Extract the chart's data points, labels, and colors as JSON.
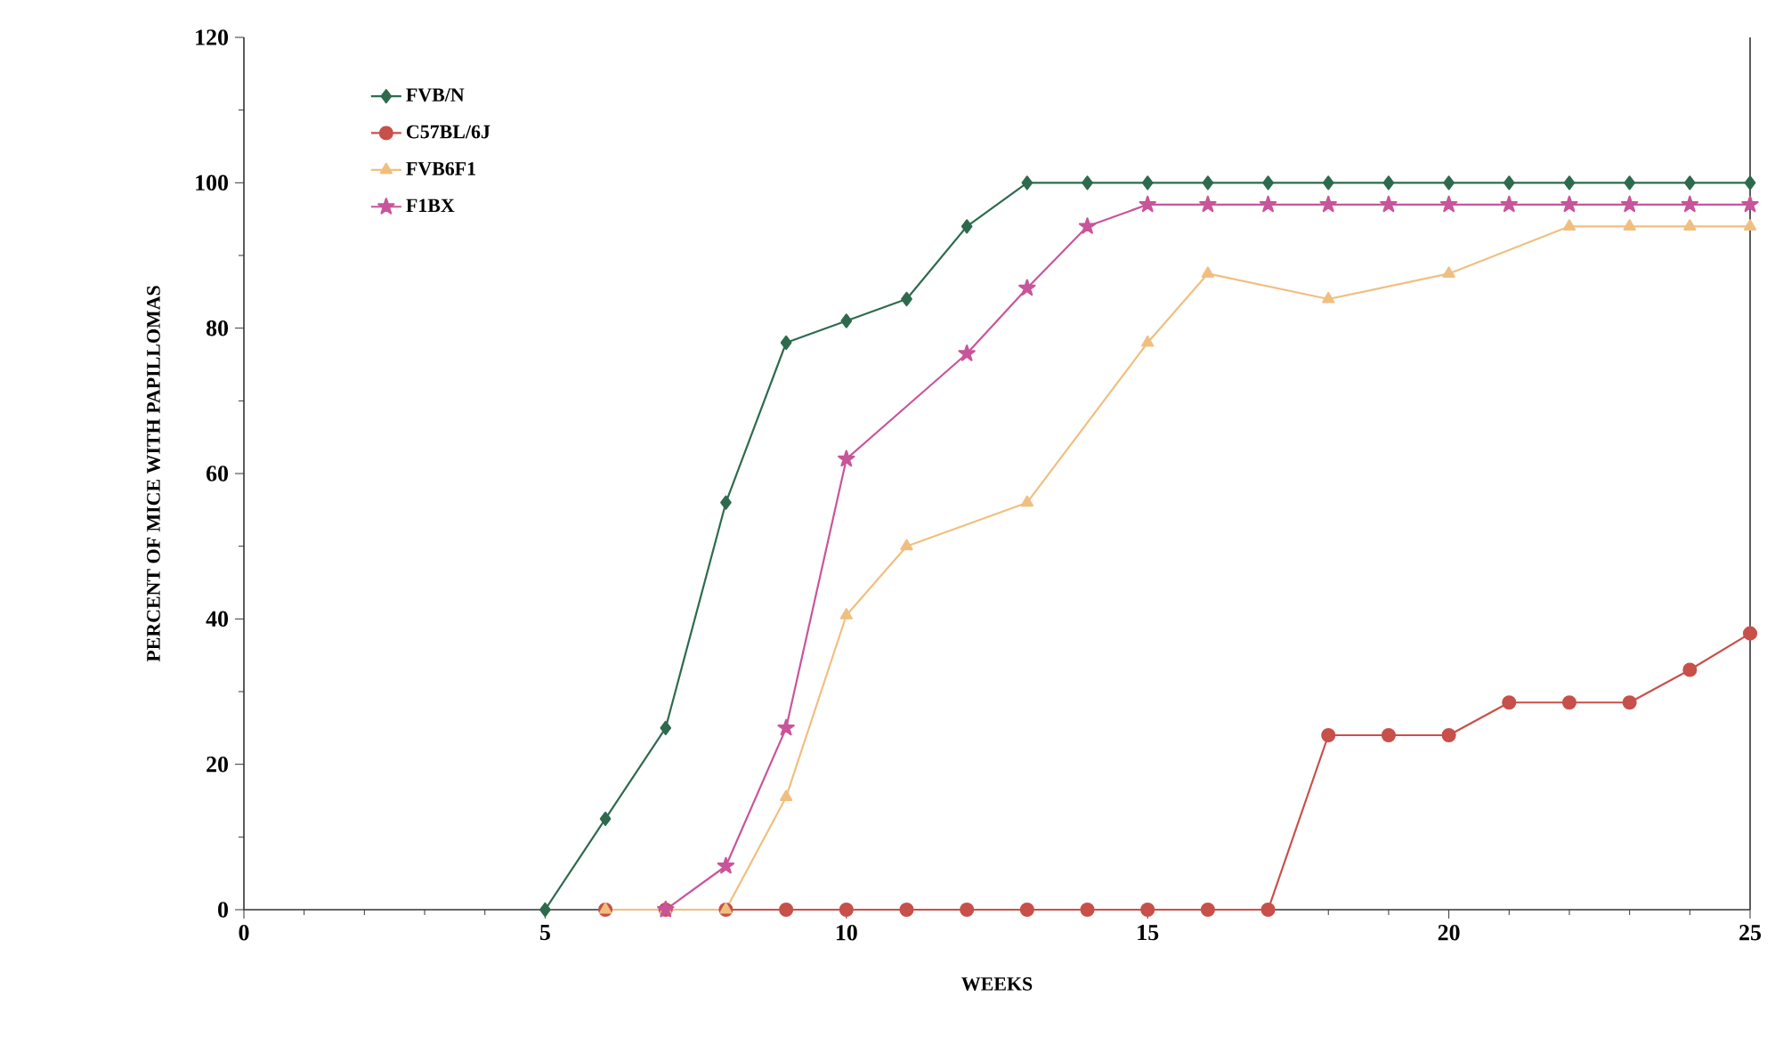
{
  "chart_data": {
    "type": "line",
    "xlabel": "WEEKS",
    "ylabel": "PERCENT OF MICE WITH PAPILLOMAS",
    "xlim": [
      0,
      25
    ],
    "ylim": [
      0,
      120
    ],
    "xticks": [
      0,
      5,
      10,
      15,
      20,
      25
    ],
    "yticks": [
      0,
      20,
      40,
      60,
      80,
      100,
      120
    ],
    "grid": false,
    "legend": "top left",
    "series": [
      {
        "name": "FVB/N",
        "color": "#2e6b4e",
        "marker": "diamond",
        "x": [
          5,
          6,
          7,
          8,
          9,
          10,
          11,
          12,
          13,
          14,
          15,
          16,
          17,
          18,
          19,
          20,
          21,
          22,
          23,
          24,
          25
        ],
        "values": [
          0,
          12.5,
          25,
          56,
          78,
          81,
          84,
          94,
          100,
          100,
          100,
          100,
          100,
          100,
          100,
          100,
          100,
          100,
          100,
          100,
          100
        ]
      },
      {
        "name": "C57BL/6J",
        "color": "#c8504a",
        "marker": "circle",
        "x": [
          6,
          7,
          8,
          9,
          10,
          11,
          12,
          13,
          14,
          15,
          16,
          17,
          18,
          19,
          20,
          21,
          22,
          23,
          24,
          25
        ],
        "values": [
          0,
          0,
          0,
          0,
          0,
          0,
          0,
          0,
          0,
          0,
          0,
          0,
          24,
          24,
          24,
          28.5,
          28.5,
          28.5,
          33,
          38
        ]
      },
      {
        "name": "FVB6F1",
        "color": "#f0bf80",
        "marker": "triangle",
        "x": [
          6,
          7,
          8,
          9,
          10,
          11,
          13,
          15,
          16,
          18,
          20,
          22,
          23,
          24,
          25
        ],
        "values": [
          0,
          0,
          0,
          15.5,
          40.5,
          50,
          56,
          78,
          87.5,
          84,
          87.5,
          94,
          94,
          94,
          94
        ]
      },
      {
        "name": "F1BX",
        "color": "#c8559a",
        "marker": "star",
        "x": [
          7,
          8,
          9,
          10,
          12,
          13,
          14,
          15,
          16,
          17,
          18,
          19,
          20,
          21,
          22,
          23,
          24,
          25
        ],
        "values": [
          0,
          6,
          25,
          62,
          76.5,
          85.5,
          94,
          97,
          97,
          97,
          97,
          97,
          97,
          97,
          97,
          97,
          97,
          97
        ]
      }
    ]
  }
}
